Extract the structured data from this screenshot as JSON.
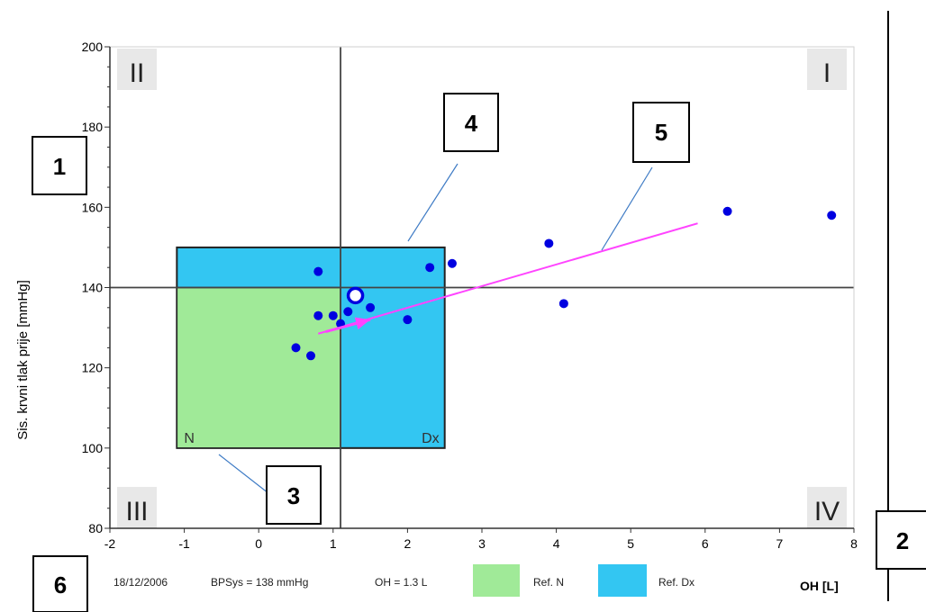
{
  "chart_data": {
    "type": "scatter",
    "title": "",
    "xlabel": "OH [L]",
    "ylabel": "Sis. krvni tlak prije [mmHg]",
    "xlim": [
      -2,
      8
    ],
    "ylim": [
      80,
      200
    ],
    "xticks": [
      -2,
      -1,
      0,
      1,
      2,
      3,
      4,
      5,
      6,
      7,
      8
    ],
    "yticks": [
      80,
      100,
      120,
      140,
      160,
      180,
      200
    ],
    "grid": false,
    "reference_lines": {
      "x": 1.1,
      "y": 140
    },
    "quadrant_labels": [
      "II",
      "I",
      "III",
      "IV"
    ],
    "regions": [
      {
        "name": "N",
        "label": "N",
        "x": [
          -1.1,
          1.1
        ],
        "y": [
          100,
          140
        ],
        "color": "#a0ea98"
      },
      {
        "name": "Dx",
        "label": "Dx",
        "x": [
          -1.1,
          2.5
        ],
        "y": [
          100,
          150
        ],
        "color": "#33c6f2"
      }
    ],
    "series": [
      {
        "color": "#0000e0",
        "points": [
          {
            "x": 0.5,
            "y": 125
          },
          {
            "x": 0.7,
            "y": 123
          },
          {
            "x": 0.8,
            "y": 144
          },
          {
            "x": 0.8,
            "y": 133
          },
          {
            "x": 1.0,
            "y": 133
          },
          {
            "x": 1.1,
            "y": 131
          },
          {
            "x": 1.2,
            "y": 134
          },
          {
            "x": 1.5,
            "y": 135
          },
          {
            "x": 2.0,
            "y": 132
          },
          {
            "x": 2.3,
            "y": 145
          },
          {
            "x": 2.6,
            "y": 146
          },
          {
            "x": 3.9,
            "y": 151
          },
          {
            "x": 4.1,
            "y": 136
          },
          {
            "x": 6.3,
            "y": 159
          },
          {
            "x": 7.7,
            "y": 158
          }
        ]
      }
    ],
    "current_point": {
      "x": 1.3,
      "y": 138
    },
    "trend_line": {
      "color": "#ff44ff",
      "x": [
        0.8,
        5.9
      ],
      "y": [
        128.5,
        156
      ]
    },
    "arrow": {
      "color": "#ff44ff",
      "x": [
        0.9,
        1.5
      ],
      "y": [
        129,
        132
      ]
    }
  },
  "footer": {
    "date": "18/12/2006",
    "bps": "BPSys = 138 mmHg",
    "oh": "OH = 1.3 L",
    "ref_n_label": "Ref. N",
    "ref_dx_label": "Ref. Dx",
    "ref_n_color": "#a0ea98",
    "ref_dx_color": "#33c6f2"
  },
  "callouts": [
    "1",
    "2",
    "3",
    "4",
    "5",
    "6"
  ]
}
